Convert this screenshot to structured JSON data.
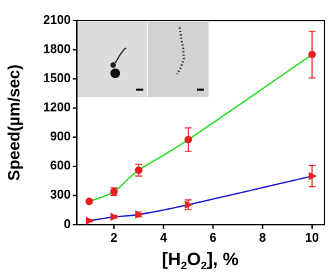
{
  "chart_data": {
    "type": "scatter",
    "x_label_parts": [
      "[H",
      "2",
      "O",
      "2",
      "], %"
    ],
    "y_label": "Speed(µm/sec)",
    "xlim": [
      0.5,
      10.5
    ],
    "xticks": [
      2,
      4,
      6,
      8,
      10
    ],
    "ylim": [
      0,
      2100
    ],
    "yticks": [
      0,
      300,
      600,
      900,
      1200,
      1500,
      1800,
      2100
    ],
    "series": [
      {
        "marker": "circle",
        "color": "#e62020",
        "line_color": "#22dd22",
        "x": [
          1,
          2,
          3,
          5,
          10
        ],
        "values": [
          240,
          340,
          560,
          875,
          1750
        ],
        "errors": [
          15,
          40,
          60,
          120,
          240
        ]
      },
      {
        "marker": "triangle",
        "color": "#e62020",
        "line_color": "#1a1acc",
        "x": [
          1,
          2,
          3,
          5,
          10
        ],
        "values": [
          40,
          80,
          105,
          205,
          500
        ],
        "errors": [
          10,
          15,
          25,
          50,
          110
        ]
      }
    ]
  }
}
